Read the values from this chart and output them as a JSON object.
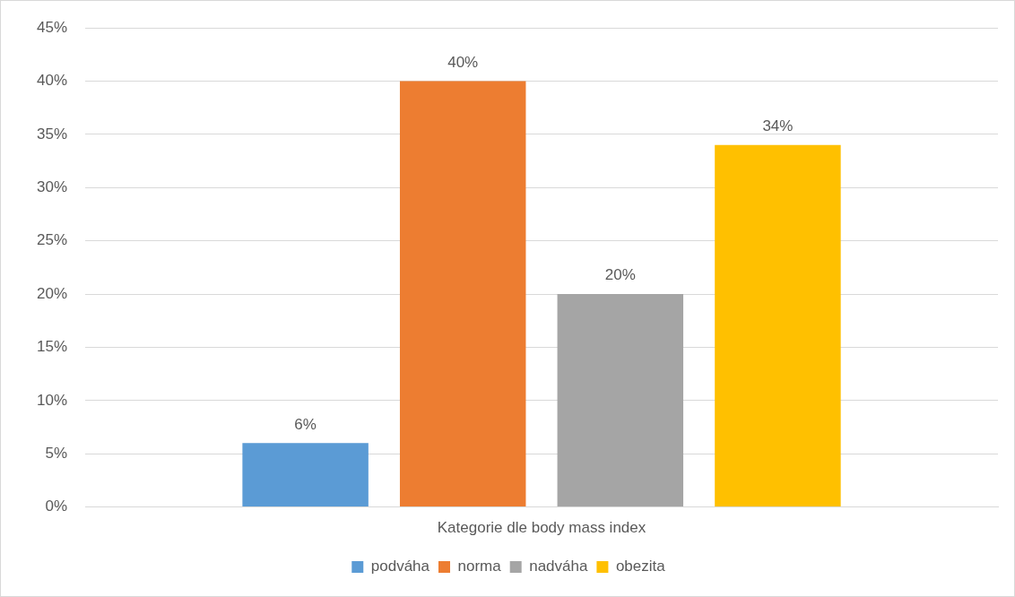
{
  "chart_data": {
    "type": "bar",
    "categories": [
      "Kategorie dle body mass index"
    ],
    "series": [
      {
        "name": "podváha",
        "color": "#5b9bd5",
        "values": [
          6
        ],
        "value_labels": [
          "6%"
        ]
      },
      {
        "name": "norma",
        "color": "#ed7d31",
        "values": [
          40
        ],
        "value_labels": [
          "40%"
        ]
      },
      {
        "name": "nadváha",
        "color": "#a5a5a5",
        "values": [
          20
        ],
        "value_labels": [
          "20%"
        ]
      },
      {
        "name": "obezita",
        "color": "#ffc000",
        "values": [
          34
        ],
        "value_labels": [
          "34%"
        ]
      }
    ],
    "ylim": [
      0,
      45
    ],
    "yticks": [
      {
        "value": 0,
        "label": "0%"
      },
      {
        "value": 5,
        "label": "5%"
      },
      {
        "value": 10,
        "label": "10%"
      },
      {
        "value": 15,
        "label": "15%"
      },
      {
        "value": 20,
        "label": "20%"
      },
      {
        "value": 25,
        "label": "25%"
      },
      {
        "value": 30,
        "label": "30%"
      },
      {
        "value": 35,
        "label": "35%"
      },
      {
        "value": 40,
        "label": "40%"
      },
      {
        "value": 45,
        "label": "45%"
      }
    ],
    "grid": "y",
    "legend": "bottom"
  }
}
